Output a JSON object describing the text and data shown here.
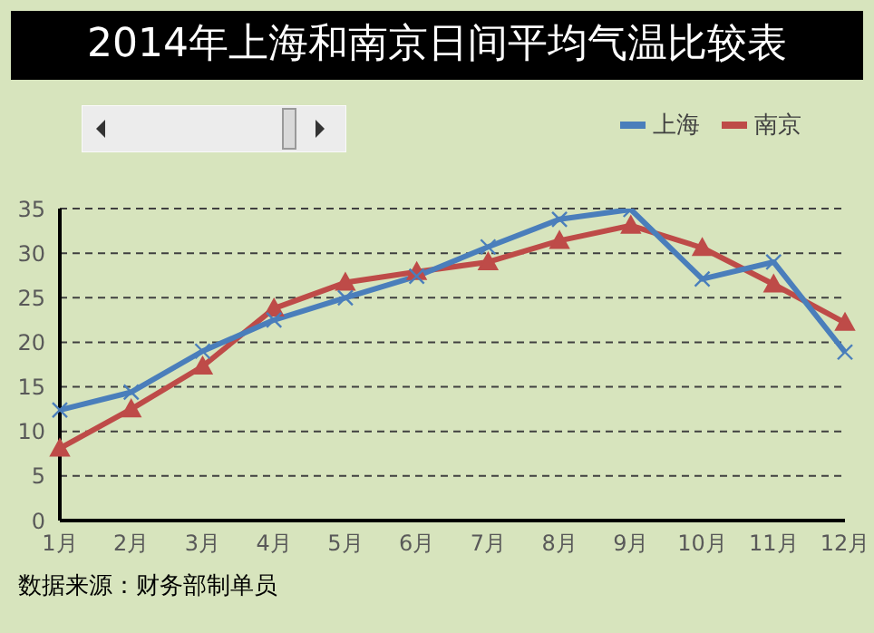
{
  "chart_data": {
    "type": "line",
    "title": "2014年上海和南京日间平均气温比较表",
    "categories": [
      "1月",
      "2月",
      "3月",
      "4月",
      "5月",
      "6月",
      "7月",
      "8月",
      "9月",
      "10月",
      "11月",
      "12月"
    ],
    "series": [
      {
        "name": "上海",
        "color": "#4a7ebb",
        "marker": "cross",
        "values": [
          12.4,
          14.4,
          19.0,
          22.5,
          25.0,
          27.4,
          30.7,
          33.8,
          34.9,
          27.1,
          29.0,
          18.9
        ]
      },
      {
        "name": "南京",
        "color": "#be4b48",
        "marker": "triangle",
        "values": [
          8.1,
          12.5,
          17.3,
          23.8,
          26.7,
          27.9,
          29.0,
          31.4,
          33.1,
          30.6,
          26.5,
          22.2
        ]
      }
    ],
    "ylim": [
      0,
      35
    ],
    "yticks": [
      0,
      5,
      10,
      15,
      20,
      25,
      30,
      35
    ],
    "grid": "y",
    "legend": "top right",
    "annotations": [
      "数据来源：财务部制单员"
    ]
  }
}
